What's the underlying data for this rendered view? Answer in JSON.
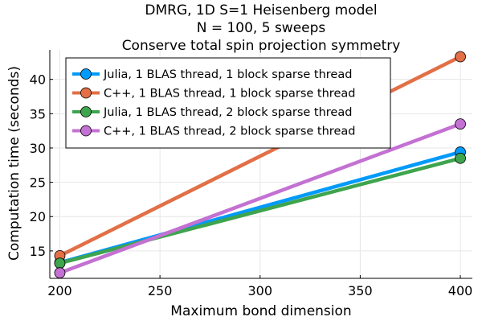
{
  "chart_data": {
    "type": "line",
    "title": [
      "DMRG, 1D S=1 Heisenberg model",
      "N = 100, 5 sweeps",
      "Conserve total spin projection symmetry"
    ],
    "xlabel": "Maximum bond dimension",
    "ylabel": "Computation time (seconds)",
    "xlim": [
      195,
      406
    ],
    "ylim": [
      11,
      44.3
    ],
    "xticks": [
      200,
      250,
      300,
      350,
      400
    ],
    "yticks": [
      15,
      20,
      25,
      30,
      35,
      40
    ],
    "grid": true,
    "legend_position": "top-left",
    "x": [
      200,
      400
    ],
    "series": [
      {
        "name": "Julia, 1 BLAS thread, 1 block sparse thread",
        "values": [
          13.3,
          29.4
        ],
        "color": "#009AFA"
      },
      {
        "name": "C++, 1 BLAS thread, 1 block sparse thread",
        "values": [
          14.3,
          43.3
        ],
        "color": "#E26F46"
      },
      {
        "name": "Julia, 1 BLAS thread, 2 block sparse thread",
        "values": [
          13.2,
          28.5
        ],
        "color": "#3EA44E"
      },
      {
        "name": "C++, 1 BLAS thread, 2 block sparse thread",
        "values": [
          11.8,
          33.5
        ],
        "color": "#C371D2"
      }
    ]
  }
}
